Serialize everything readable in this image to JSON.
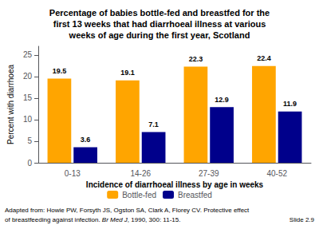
{
  "chart_data": {
    "type": "bar",
    "title": "Percentage of babies bottle-fed and breastfed for the\nfirst 13 weeks that had diarrhoeal illness at various\nweeks of age during the first year, Scotland",
    "categories": [
      "0-13",
      "14-26",
      "27-39",
      "40-52"
    ],
    "series": [
      {
        "name": "Bottle-fed",
        "color": "#FFA500",
        "values": [
          19.5,
          19.1,
          22.3,
          22.4
        ]
      },
      {
        "name": "Breastfed",
        "color": "#00008B",
        "values": [
          3.6,
          7.1,
          12.9,
          11.9
        ]
      }
    ],
    "xlabel": "Incidence of diarrhoeal illness by age in weeks",
    "ylabel": "Percent with diarrhoea",
    "ylim": [
      0,
      27
    ],
    "yticks": [
      0,
      5,
      10,
      15,
      20,
      25
    ],
    "grid": false,
    "legend": "bottom",
    "data_labels": true,
    "annotations": [
      "Adapted from: Howie PW, Forsyth JS, Ogston SA, Clark A, Florey CV. Protective effect",
      "of breastfeeding against infection.",
      "Br Med J",
      ", 1990, 300: 11-15.",
      "Slide 2.9"
    ]
  }
}
